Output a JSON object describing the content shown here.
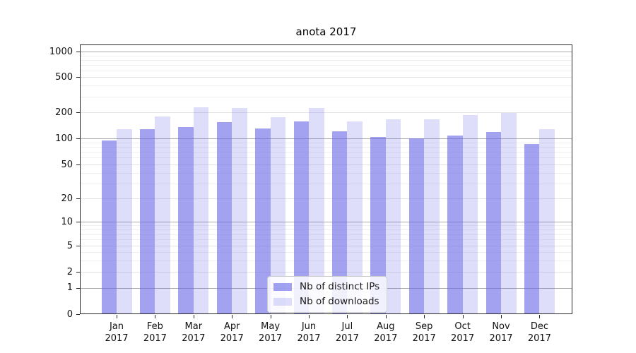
{
  "window": {
    "title": "anota 2017"
  },
  "chart_data": {
    "type": "bar",
    "title": "anota 2017",
    "year_label": "2017",
    "categories": [
      "Jan",
      "Feb",
      "Mar",
      "Apr",
      "May",
      "Jun",
      "Jul",
      "Aug",
      "Sep",
      "Oct",
      "Nov",
      "Dec"
    ],
    "series": [
      {
        "name": "Nb of distinct IPs",
        "color": "rgba(105, 105, 232, 0.62)",
        "values": [
          95,
          127,
          135,
          153,
          130,
          157,
          121,
          104,
          100,
          108,
          119,
          87
        ]
      },
      {
        "name": "Nb of downloads",
        "color": "rgba(105, 105, 232, 0.22)",
        "values": [
          127,
          178,
          227,
          223,
          176,
          223,
          157,
          166,
          166,
          185,
          195,
          127
        ]
      }
    ],
    "yscale": "symlog",
    "yticks": [
      0,
      1,
      2,
      5,
      10,
      20,
      50,
      100,
      200,
      500,
      1000
    ],
    "ytick_decades": [
      1,
      10,
      100,
      1000
    ],
    "ytick_mids": [
      2,
      5,
      20,
      50,
      200,
      500
    ],
    "ylim": [
      0,
      1300
    ],
    "xlabel": "",
    "ylabel": "",
    "grid": true,
    "legend_position": "lower center",
    "colors": {
      "grid_major": "#a9a9a9",
      "grid_mid": "#e3e3e3",
      "grid_minor": "#efefef",
      "axis": "#262626",
      "text": "#111111"
    }
  },
  "layout_hints": {
    "y_anchors": [
      [
        0,
        1.0
      ],
      [
        1,
        0.9018
      ],
      [
        2,
        0.8429
      ],
      [
        5,
        0.7461
      ],
      [
        10,
        0.6571
      ],
      [
        20,
        0.5707
      ],
      [
        50,
        0.445
      ],
      [
        100,
        0.3489
      ],
      [
        200,
        0.2513
      ],
      [
        500,
        0.1204
      ],
      [
        1000,
        0.0262
      ]
    ],
    "minor_decades": [
      1,
      10,
      100
    ],
    "minor_multiples": [
      3,
      4,
      6,
      7,
      8,
      9
    ]
  }
}
